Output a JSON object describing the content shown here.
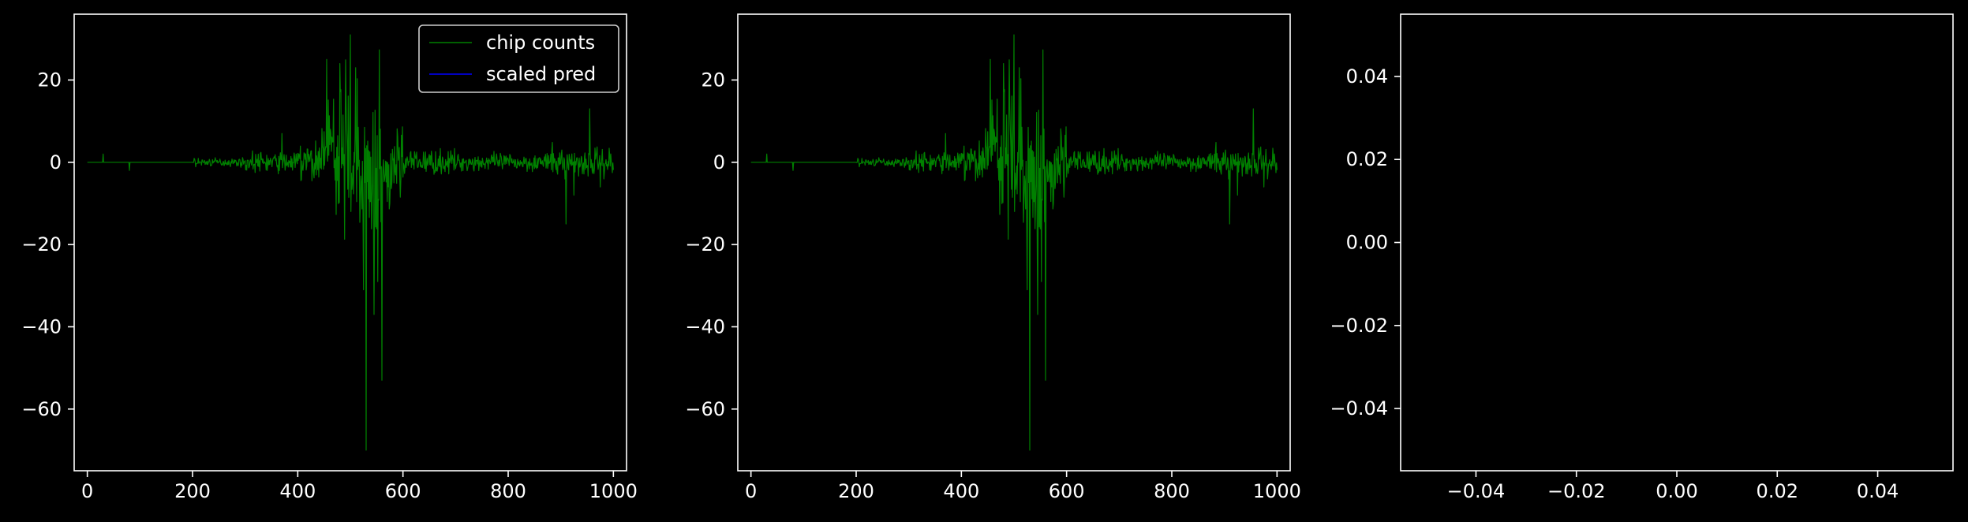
{
  "figure": {
    "background": "#000000",
    "axis_color": "#ffffff",
    "text_color": "#ffffff"
  },
  "chart_data": [
    {
      "type": "line",
      "title": "",
      "xlabel": "",
      "ylabel": "",
      "xlim": [
        -25,
        1025
      ],
      "ylim": [
        -75,
        36
      ],
      "xticks": [
        0,
        200,
        400,
        600,
        800,
        1000
      ],
      "yticks": [
        -60,
        -40,
        -20,
        0,
        20
      ],
      "xtick_labels": [
        "0",
        "200",
        "400",
        "600",
        "800",
        "1000"
      ],
      "ytick_labels": [
        "−60",
        "−40",
        "−20",
        "0",
        "20"
      ],
      "grid": false,
      "legend": {
        "position": "top-right",
        "entries": [
          {
            "label": "chip counts",
            "color": "#008000"
          },
          {
            "label": "scaled pred",
            "color": "#0000ff"
          }
        ]
      },
      "series": [
        {
          "name": "chip counts",
          "color": "#008000",
          "x_range": [
            0,
            1000
          ],
          "peaks": {
            "max": 31,
            "min": -70,
            "max_at": 500,
            "min_at": 530
          }
        },
        {
          "name": "scaled pred",
          "color": "#0000ff",
          "values": []
        }
      ]
    },
    {
      "type": "line",
      "title": "",
      "xlabel": "",
      "ylabel": "",
      "xlim": [
        -25,
        1025
      ],
      "ylim": [
        -75,
        36
      ],
      "xticks": [
        0,
        200,
        400,
        600,
        800,
        1000
      ],
      "yticks": [
        -60,
        -40,
        -20,
        0,
        20
      ],
      "xtick_labels": [
        "0",
        "200",
        "400",
        "600",
        "800",
        "1000"
      ],
      "ytick_labels": [
        "−60",
        "−40",
        "−20",
        "0",
        "20"
      ],
      "grid": false,
      "series": [
        {
          "color": "#008000",
          "x_range": [
            0,
            1000
          ],
          "peaks": {
            "max": 31,
            "min": -70,
            "max_at": 500,
            "min_at": 530
          }
        }
      ]
    },
    {
      "type": "line",
      "title": "",
      "xlabel": "",
      "ylabel": "",
      "xlim": [
        -0.055,
        0.055
      ],
      "ylim": [
        -0.055,
        0.055
      ],
      "xticks": [
        -0.04,
        -0.02,
        0.0,
        0.02,
        0.04
      ],
      "yticks": [
        -0.04,
        -0.02,
        0.0,
        0.02,
        0.04
      ],
      "xtick_labels": [
        "−0.04",
        "−0.02",
        "0.00",
        "0.02",
        "0.04"
      ],
      "ytick_labels": [
        "−0.04",
        "−0.02",
        "0.00",
        "0.02",
        "0.04"
      ],
      "grid": false,
      "series": []
    }
  ]
}
